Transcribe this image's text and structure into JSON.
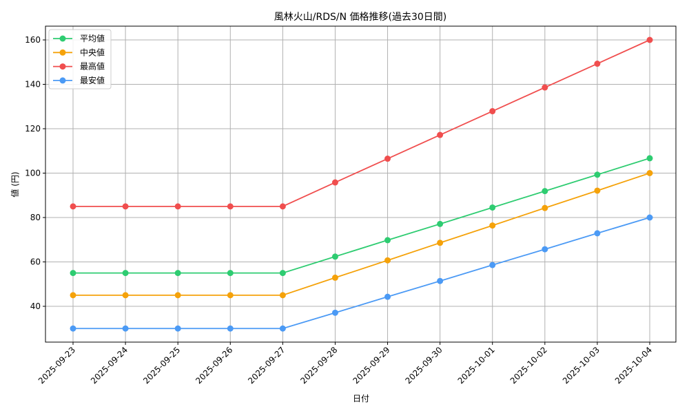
{
  "chart_data": {
    "type": "line",
    "title": "風林火山/RDS/N 価格推移(過去30日間)",
    "xlabel": "日付",
    "ylabel": "値 (円)",
    "categories": [
      "2025-09-23",
      "2025-09-24",
      "2025-09-25",
      "2025-09-26",
      "2025-09-27",
      "2025-09-28",
      "2025-09-29",
      "2025-09-30",
      "2025-10-01",
      "2025-10-02",
      "2025-10-03",
      "2025-10-04"
    ],
    "series": [
      {
        "name": "平均値",
        "color": "#2ecc71",
        "values": [
          55,
          55,
          55,
          55,
          55,
          62.4,
          69.8,
          77.1,
          84.5,
          91.9,
          99.3,
          106.7
        ]
      },
      {
        "name": "中央値",
        "color": "#f5a20a",
        "values": [
          45,
          45,
          45,
          45,
          45,
          52.9,
          60.7,
          68.6,
          76.4,
          84.3,
          92.1,
          100
        ]
      },
      {
        "name": "最高値",
        "color": "#f04e4e",
        "values": [
          85,
          85,
          85,
          85,
          85,
          95.8,
          106.5,
          117.2,
          127.9,
          138.6,
          149.3,
          160
        ]
      },
      {
        "name": "最安値",
        "color": "#4b9af5",
        "values": [
          30,
          30,
          30,
          30,
          30,
          37.1,
          44.3,
          51.4,
          58.6,
          65.7,
          72.9,
          80
        ]
      }
    ],
    "yticks": [
      40,
      60,
      80,
      100,
      120,
      140,
      160
    ],
    "ylim": [
      23.6,
      166.4
    ],
    "grid": true,
    "legend_position": "upper left",
    "markers": true
  }
}
